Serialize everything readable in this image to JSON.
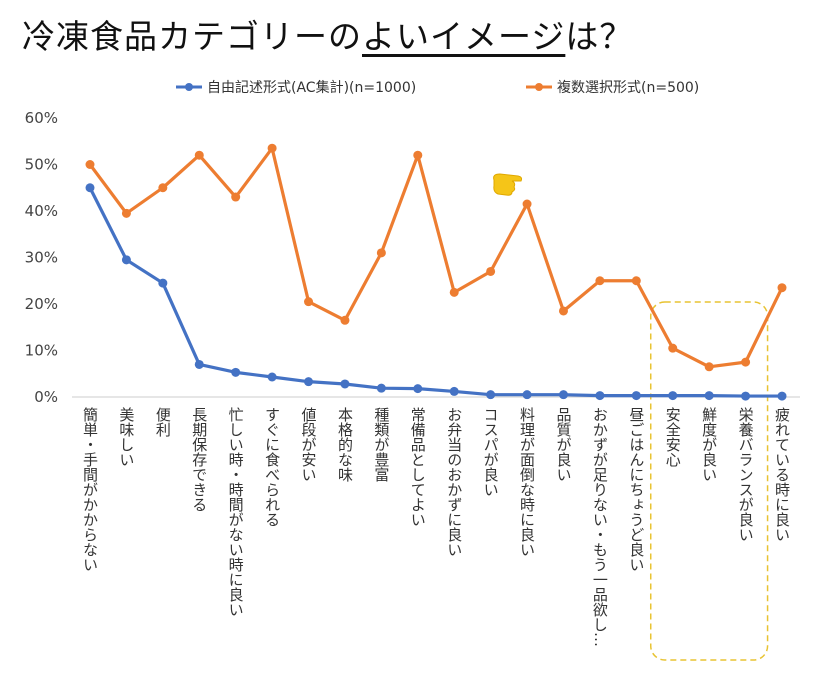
{
  "title": {
    "main": "冷凍食品カテゴリーの",
    "emphasis": "よいイメージ",
    "suffix": "は？"
  },
  "chart_data": {
    "type": "line",
    "title": "冷凍食品カテゴリーのよいイメージは？",
    "categories": [
      "簡単・手間がかからない",
      "美味しい",
      "便利",
      "長期保存できる",
      "忙しい時・時間がない時に良い",
      "すぐに食べられる",
      "値段が安い",
      "本格的な味",
      "種類が豊富",
      "常備品としてよい",
      "お弁当のおかずに良い",
      "コスパが良い",
      "料理が面倒な時に良い",
      "品質が良い",
      "おかずが足りない・もう一品欲し…",
      "昼ごはんにちょうど良い",
      "安全安心",
      "鮮度が良い",
      "栄養バランスが良い",
      "疲れている時に良い"
    ],
    "series": [
      {
        "name": "自由記述形式(AC集計)(n=1000)",
        "color": "#4472C4",
        "values": [
          45,
          29.5,
          24.5,
          7,
          5.3,
          4.3,
          3.3,
          2.8,
          1.9,
          1.8,
          1.2,
          0.5,
          0.5,
          0.5,
          0.3,
          0.3,
          0.3,
          0.3,
          0.2,
          0.2
        ]
      },
      {
        "name": "複数選択形式(n=500)",
        "color": "#ED7D31",
        "values": [
          50,
          39.5,
          45,
          52,
          43,
          53.5,
          20.5,
          16.5,
          31,
          52,
          22.5,
          27,
          41.5,
          18.5,
          25,
          25,
          10.5,
          6.5,
          7.5,
          23.5
        ]
      }
    ],
    "yticks": [
      "0%",
      "10%",
      "20%",
      "30%",
      "40%",
      "50%",
      "60%"
    ],
    "ylim": [
      0,
      60
    ],
    "xlabel": "",
    "ylabel": "",
    "legend": "top",
    "grid": false,
    "highlight": {
      "from_category": 16,
      "to_category": 18,
      "color": "#E8C332"
    }
  }
}
